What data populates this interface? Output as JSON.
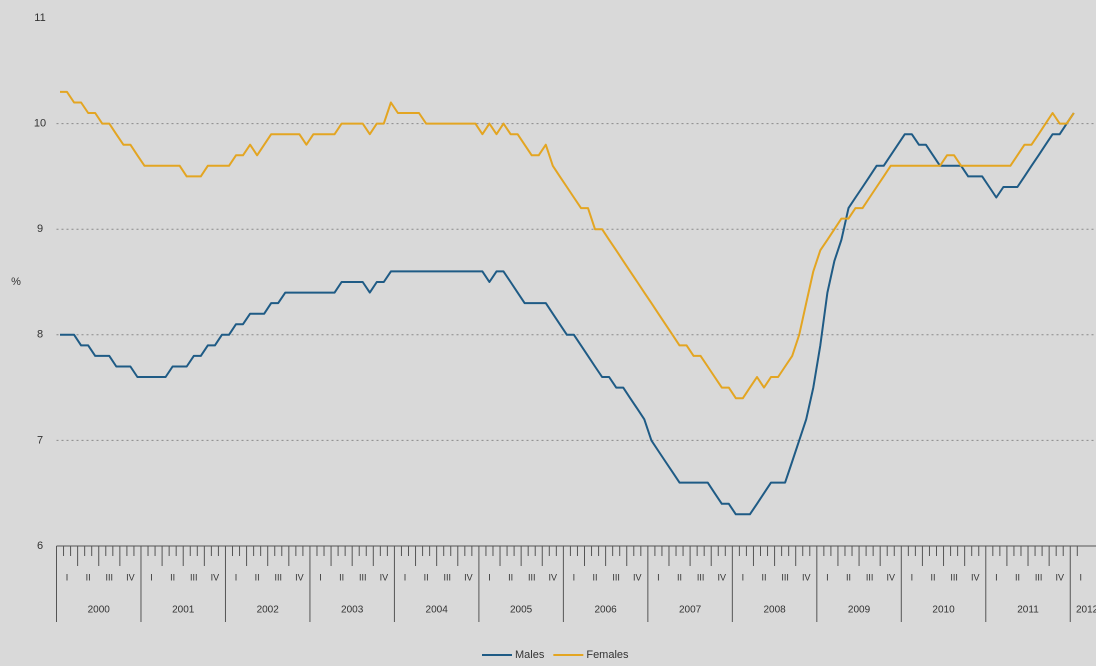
{
  "chart_data": {
    "type": "line",
    "ylabel": "%",
    "ylim": [
      6,
      11
    ],
    "yticks": [
      6,
      7,
      8,
      9,
      10,
      11
    ],
    "grid": true,
    "years": [
      "2000",
      "2001",
      "2002",
      "2003",
      "2004",
      "2005",
      "2006",
      "2007",
      "2008",
      "2009",
      "2010",
      "2011",
      "2012"
    ],
    "quarters": [
      "I",
      "II",
      "III",
      "IV"
    ],
    "legend": "bottom",
    "series": [
      {
        "name": "Males",
        "color": "#1f5b85",
        "values": [
          8.0,
          8.0,
          8.0,
          7.9,
          7.9,
          7.8,
          7.8,
          7.8,
          7.7,
          7.7,
          7.7,
          7.6,
          7.6,
          7.6,
          7.6,
          7.6,
          7.7,
          7.7,
          7.7,
          7.8,
          7.8,
          7.9,
          7.9,
          8.0,
          8.0,
          8.1,
          8.1,
          8.2,
          8.2,
          8.2,
          8.3,
          8.3,
          8.4,
          8.4,
          8.4,
          8.4,
          8.4,
          8.4,
          8.4,
          8.4,
          8.5,
          8.5,
          8.5,
          8.5,
          8.4,
          8.5,
          8.5,
          8.6,
          8.6,
          8.6,
          8.6,
          8.6,
          8.6,
          8.6,
          8.6,
          8.6,
          8.6,
          8.6,
          8.6,
          8.6,
          8.6,
          8.5,
          8.6,
          8.6,
          8.5,
          8.4,
          8.3,
          8.3,
          8.3,
          8.3,
          8.2,
          8.1,
          8.0,
          8.0,
          7.9,
          7.8,
          7.7,
          7.6,
          7.6,
          7.5,
          7.5,
          7.4,
          7.3,
          7.2,
          7.0,
          6.9,
          6.8,
          6.7,
          6.6,
          6.6,
          6.6,
          6.6,
          6.6,
          6.5,
          6.4,
          6.4,
          6.3,
          6.3,
          6.3,
          6.4,
          6.5,
          6.6,
          6.6,
          6.6,
          6.8,
          7.0,
          7.2,
          7.5,
          7.9,
          8.4,
          8.7,
          8.9,
          9.2,
          9.3,
          9.4,
          9.5,
          9.6,
          9.6,
          9.7,
          9.8,
          9.9,
          9.9,
          9.8,
          9.8,
          9.7,
          9.6,
          9.6,
          9.6,
          9.6,
          9.5,
          9.5,
          9.5,
          9.4,
          9.3,
          9.4,
          9.4,
          9.4,
          9.5,
          9.6,
          9.7,
          9.8,
          9.9,
          9.9,
          10.0,
          10.1
        ]
      },
      {
        "name": "Females",
        "color": "#e3a522",
        "values": [
          10.3,
          10.3,
          10.2,
          10.2,
          10.1,
          10.1,
          10.0,
          10.0,
          9.9,
          9.8,
          9.8,
          9.7,
          9.6,
          9.6,
          9.6,
          9.6,
          9.6,
          9.6,
          9.5,
          9.5,
          9.5,
          9.6,
          9.6,
          9.6,
          9.6,
          9.7,
          9.7,
          9.8,
          9.7,
          9.8,
          9.9,
          9.9,
          9.9,
          9.9,
          9.9,
          9.8,
          9.9,
          9.9,
          9.9,
          9.9,
          10.0,
          10.0,
          10.0,
          10.0,
          9.9,
          10.0,
          10.0,
          10.2,
          10.1,
          10.1,
          10.1,
          10.1,
          10.0,
          10.0,
          10.0,
          10.0,
          10.0,
          10.0,
          10.0,
          10.0,
          9.9,
          10.0,
          9.9,
          10.0,
          9.9,
          9.9,
          9.8,
          9.7,
          9.7,
          9.8,
          9.6,
          9.5,
          9.4,
          9.3,
          9.2,
          9.2,
          9.0,
          9.0,
          8.9,
          8.8,
          8.7,
          8.6,
          8.5,
          8.4,
          8.3,
          8.2,
          8.1,
          8.0,
          7.9,
          7.9,
          7.8,
          7.8,
          7.7,
          7.6,
          7.5,
          7.5,
          7.4,
          7.4,
          7.5,
          7.6,
          7.5,
          7.6,
          7.6,
          7.7,
          7.8,
          8.0,
          8.3,
          8.6,
          8.8,
          8.9,
          9.0,
          9.1,
          9.1,
          9.2,
          9.2,
          9.3,
          9.4,
          9.5,
          9.6,
          9.6,
          9.6,
          9.6,
          9.6,
          9.6,
          9.6,
          9.6,
          9.7,
          9.7,
          9.6,
          9.6,
          9.6,
          9.6,
          9.6,
          9.6,
          9.6,
          9.6,
          9.7,
          9.8,
          9.8,
          9.9,
          10.0,
          10.1,
          10.0,
          10.0,
          10.1
        ]
      }
    ]
  }
}
